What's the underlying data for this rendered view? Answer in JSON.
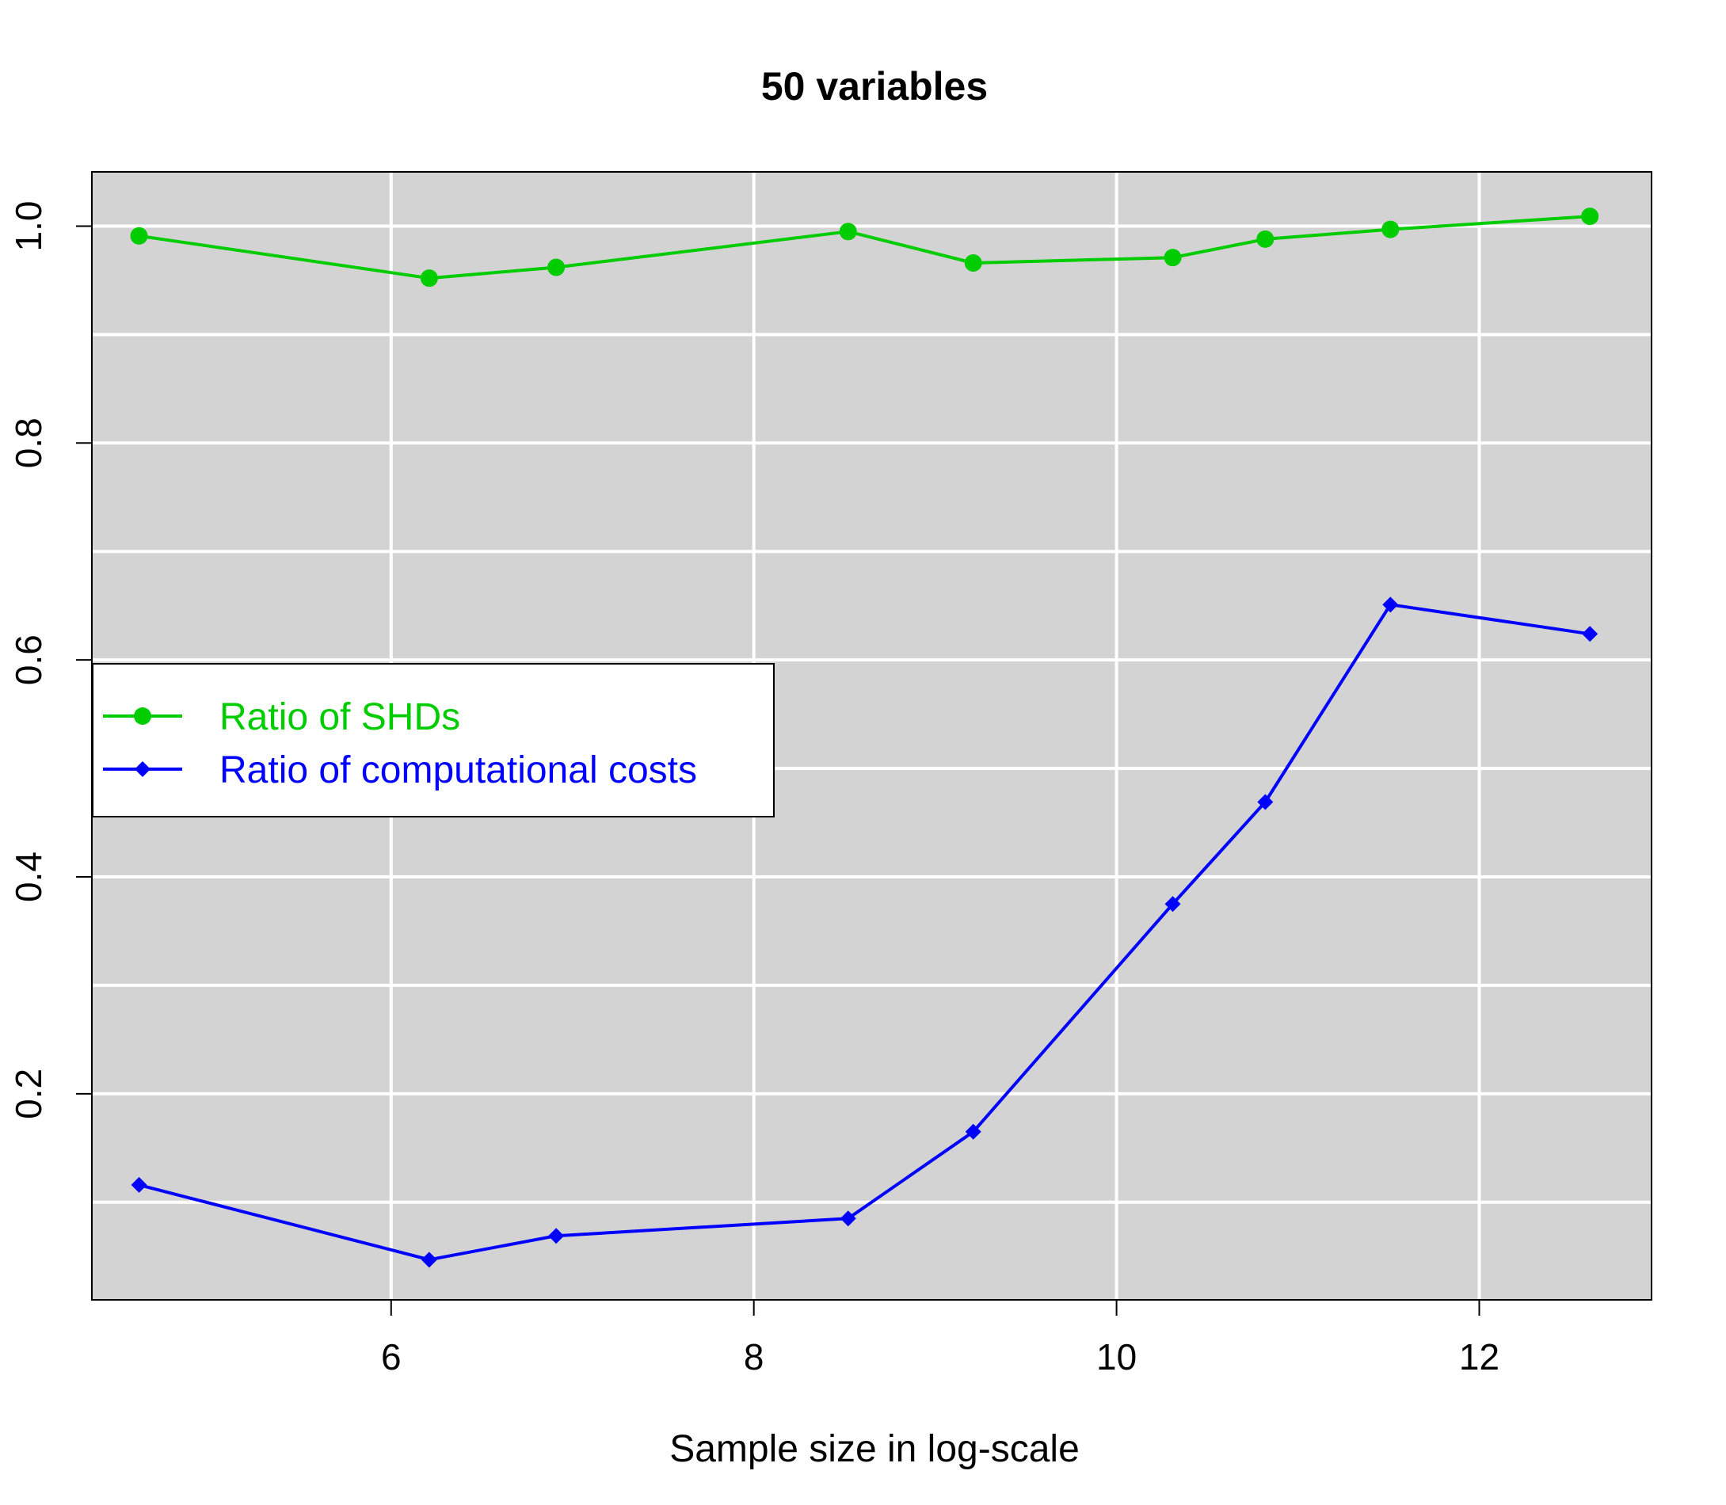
{
  "chart_data": {
    "type": "line",
    "title": "50 variables",
    "xlabel": "Sample size in log-scale",
    "ylabel": "",
    "xlim": [
      4.35,
      12.95
    ],
    "ylim": [
      0.01,
      1.05
    ],
    "x_ticks": [
      6,
      8,
      10,
      12
    ],
    "y_ticks": [
      0.2,
      0.4,
      0.6,
      0.8,
      1.0
    ],
    "x_tick_labels": [
      "6",
      "8",
      "10",
      "12"
    ],
    "y_tick_labels": [
      "0.2",
      "0.4",
      "0.6",
      "0.8",
      "1.0"
    ],
    "grid": true,
    "x_gridlines": [
      6,
      8,
      10,
      12
    ],
    "y_gridlines": [
      0.1,
      0.2,
      0.3,
      0.4,
      0.5,
      0.6,
      0.7,
      0.8,
      0.9,
      1.0
    ],
    "background": "#d3d3d3",
    "legend_position": "left",
    "series": [
      {
        "name": "Ratio of SHDs",
        "color": "#00cc00",
        "marker": "circle",
        "x": [
          4.61,
          6.21,
          6.91,
          8.52,
          9.21,
          10.31,
          10.82,
          11.51,
          12.61
        ],
        "y": [
          0.991,
          0.952,
          0.962,
          0.995,
          0.966,
          0.971,
          0.988,
          0.997,
          1.009
        ]
      },
      {
        "name": "Ratio of computational costs",
        "color": "#0000ff",
        "marker": "diamond",
        "x": [
          4.61,
          6.21,
          6.91,
          8.52,
          9.21,
          10.31,
          10.82,
          11.51,
          12.61
        ],
        "y": [
          0.116,
          0.047,
          0.069,
          0.085,
          0.165,
          0.375,
          0.469,
          0.651,
          0.624
        ]
      }
    ]
  }
}
